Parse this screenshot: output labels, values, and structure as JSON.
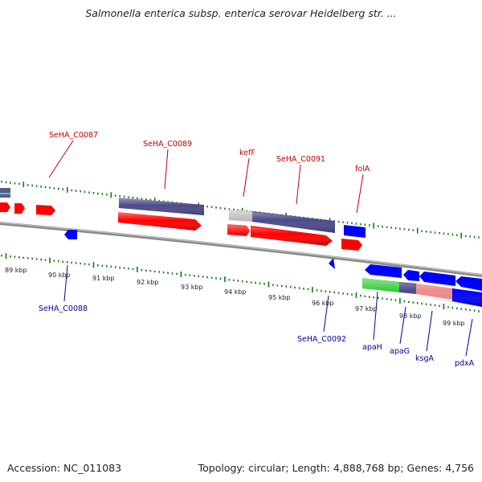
{
  "header": {
    "title": "Salmonella enterica subsp. enterica serovar Heidelberg str. ..."
  },
  "footer": {
    "accession": "Accession: NC_011083",
    "summary": "Topology: circular; Length: 4,888,768 bp; Genes: 4,756"
  },
  "colors": {
    "forward_label": "#c00000",
    "reverse_label": "#00009c",
    "cds": "#ff0000",
    "cds_reverse": "#0000ff",
    "feature_purple": "#4b4a8a",
    "feature_green": "#33cc33",
    "feature_pink": "#ee8a8a",
    "feature_gray": "#bbbbbb",
    "tick": "#0e7a0e"
  },
  "kbp_labels": [
    "89 kbp",
    "90 kbp",
    "91 kbp",
    "92 kbp",
    "93 kbp",
    "94 kbp",
    "95 kbp",
    "96 kbp",
    "97 kbp",
    "98 kbp",
    "99 kbp"
  ],
  "forward_gene_labels": [
    "SeHA_C0087",
    "SeHA_C0089",
    "kefF",
    "SeHA_C0091",
    "folA"
  ],
  "reverse_gene_labels": [
    "SeHA_C0088",
    "SeHA_C0092",
    "apaH",
    "apaG",
    "ksgA",
    "pdxA"
  ]
}
